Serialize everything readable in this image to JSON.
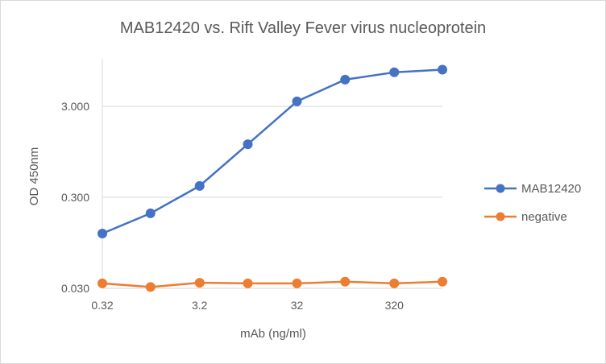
{
  "chart_data": {
    "type": "line",
    "title": "MAB12420 vs. Rift Valley Fever virus nucleoprotein",
    "xlabel": "mAb (ng/ml)",
    "ylabel": "OD 450nm",
    "x_scale": "log",
    "y_scale": "log",
    "x": [
      0.32,
      1.0,
      3.2,
      10,
      32,
      100,
      320,
      1000
    ],
    "x_tick_labels": [
      "0.32",
      "3.2",
      "32",
      "320"
    ],
    "x_tick_values": [
      0.32,
      3.2,
      32,
      320
    ],
    "y_tick_labels": [
      "0.030",
      "0.300",
      "3.000"
    ],
    "y_tick_values": [
      0.03,
      0.3,
      3.0
    ],
    "ylim": [
      0.03,
      10.0
    ],
    "xlim": [
      0.32,
      1000
    ],
    "grid": true,
    "legend_position": "right",
    "series": [
      {
        "name": "MAB12420",
        "color": "#4472C4",
        "values": [
          0.12,
          0.2,
          0.4,
          1.15,
          3.4,
          5.9,
          7.1,
          7.6
        ]
      },
      {
        "name": "negative",
        "color": "#ED7D31",
        "values": [
          0.034,
          0.031,
          0.0345,
          0.034,
          0.034,
          0.0355,
          0.034,
          0.0355
        ]
      }
    ]
  }
}
